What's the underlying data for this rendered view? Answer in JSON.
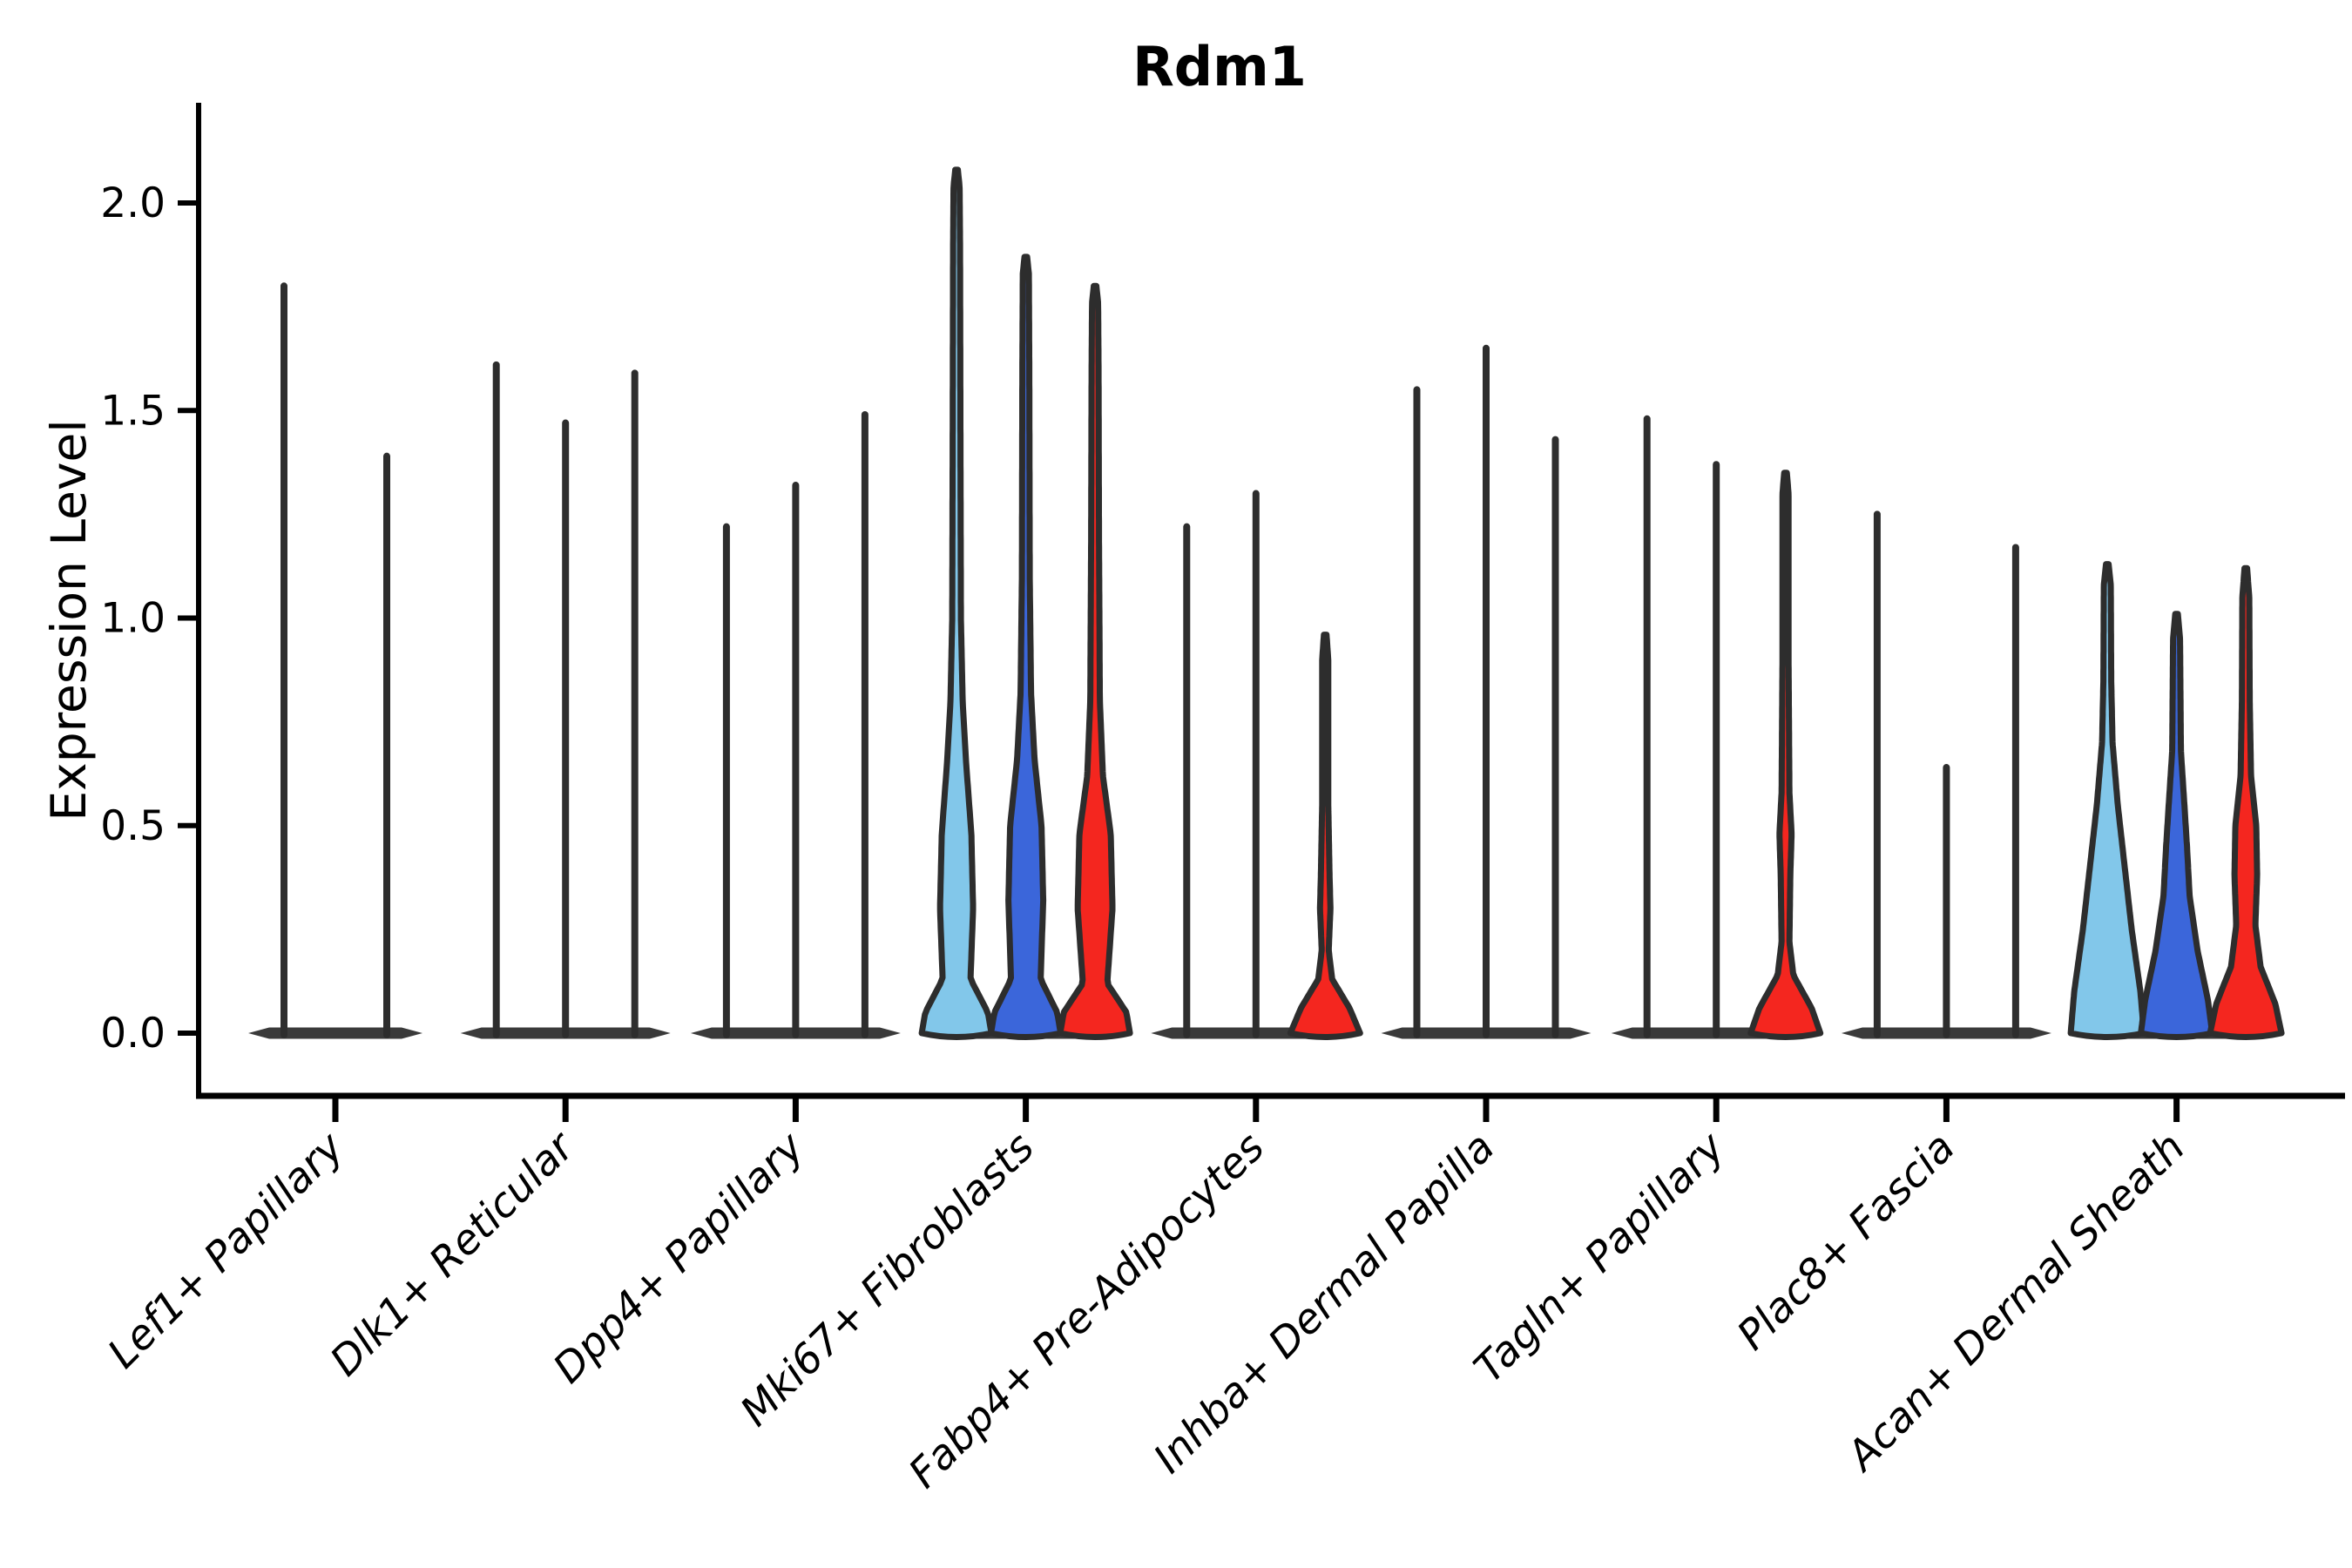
{
  "chart_data": {
    "type": "violin",
    "title": "Rdm1",
    "ylabel": "Expression Level",
    "xlabel": "",
    "ylim": [
      -0.15,
      2.24
    ],
    "yticks": [
      "0.0",
      "0.5",
      "1.0",
      "1.5",
      "2.0"
    ],
    "ytick_values": [
      0.0,
      0.5,
      1.0,
      1.5,
      2.0
    ],
    "grid": "off",
    "legend": "none",
    "colors": {
      "light_blue": "#82C7EA",
      "blue": "#3B66DA",
      "red": "#F4261F",
      "outline": "#2d2d2d",
      "axis": "#000000",
      "base_bar": "#3a3a3a"
    },
    "categories": [
      "Lef1+ Papillary",
      "Dlk1+ Reticular",
      "Dpp4+ Papillary",
      "Mki67+ Fibroblasts",
      "Fabp4+ Pre-Adipocytes",
      "Inhba+ Dermal Papilla",
      "Tagln+ Papillary",
      "Plac8+ Fascia",
      "Acan+ Dermal Sheath"
    ],
    "groups": [
      {
        "label": "Lef1+ Papillary",
        "violins": [
          {
            "hue": "light_blue",
            "max": 1.8,
            "shape": "spike"
          },
          {
            "hue": "red",
            "max": 1.39,
            "shape": "spike"
          }
        ]
      },
      {
        "label": "Dlk1+ Reticular",
        "violins": [
          {
            "hue": "light_blue",
            "max": 1.61,
            "shape": "spike"
          },
          {
            "hue": "blue",
            "max": 1.47,
            "shape": "spike"
          },
          {
            "hue": "red",
            "max": 1.59,
            "shape": "spike"
          }
        ]
      },
      {
        "label": "Dpp4+ Papillary",
        "violins": [
          {
            "hue": "light_blue",
            "max": 1.22,
            "shape": "spike"
          },
          {
            "hue": "blue",
            "max": 1.32,
            "shape": "spike"
          },
          {
            "hue": "red",
            "max": 1.49,
            "shape": "spike"
          }
        ]
      },
      {
        "label": "Mki67+ Fibroblasts",
        "violins": [
          {
            "hue": "light_blue",
            "max": 2.08,
            "shape": "wide",
            "profile": [
              [
                0,
                40
              ],
              [
                0.05,
                36
              ],
              [
                0.13,
                16
              ],
              [
                0.3,
                19
              ],
              [
                0.48,
                17
              ],
              [
                0.65,
                11
              ],
              [
                0.8,
                7
              ],
              [
                1.0,
                5
              ],
              [
                1.4,
                4.5
              ],
              [
                1.9,
                4
              ],
              [
                2.04,
                3.5
              ],
              [
                2.08,
                1.5
              ]
            ]
          },
          {
            "hue": "blue",
            "max": 1.87,
            "shape": "wide",
            "profile": [
              [
                0,
                40
              ],
              [
                0.05,
                36
              ],
              [
                0.13,
                17
              ],
              [
                0.32,
                20
              ],
              [
                0.5,
                18
              ],
              [
                0.66,
                10
              ],
              [
                0.82,
                6
              ],
              [
                1.1,
                4.5
              ],
              [
                1.6,
                4
              ],
              [
                1.83,
                3.5
              ],
              [
                1.87,
                1.5
              ]
            ]
          },
          {
            "hue": "red",
            "max": 1.8,
            "shape": "wide",
            "profile": [
              [
                0,
                40
              ],
              [
                0.05,
                36
              ],
              [
                0.12,
                14
              ],
              [
                0.3,
                20
              ],
              [
                0.48,
                18
              ],
              [
                0.62,
                9
              ],
              [
                0.8,
                5.5
              ],
              [
                1.2,
                4.5
              ],
              [
                1.6,
                4
              ],
              [
                1.76,
                3.5
              ],
              [
                1.8,
                1.5
              ]
            ]
          }
        ]
      },
      {
        "label": "Fabp4+ Pre-Adipocytes",
        "violins": [
          {
            "hue": "light_blue",
            "max": 1.22,
            "shape": "spike"
          },
          {
            "hue": "blue",
            "max": 1.3,
            "shape": "spike"
          },
          {
            "hue": "red",
            "max": 0.96,
            "shape": "wide",
            "profile": [
              [
                0,
                40
              ],
              [
                0.06,
                28
              ],
              [
                0.13,
                8
              ],
              [
                0.2,
                4
              ],
              [
                0.3,
                6
              ],
              [
                0.38,
                5
              ],
              [
                0.55,
                3.5
              ],
              [
                0.9,
                3.5
              ],
              [
                0.96,
                1.5
              ]
            ]
          }
        ]
      },
      {
        "label": "Inhba+ Dermal Papilla",
        "violins": [
          {
            "hue": "light_blue",
            "max": 1.55,
            "shape": "spike"
          },
          {
            "hue": "blue",
            "max": 1.65,
            "shape": "spike"
          },
          {
            "hue": "red",
            "max": 1.43,
            "shape": "spike"
          }
        ]
      },
      {
        "label": "Tagln+ Papillary",
        "violins": [
          {
            "hue": "light_blue",
            "max": 1.48,
            "shape": "spike"
          },
          {
            "hue": "blue",
            "max": 1.37,
            "shape": "spike"
          },
          {
            "hue": "red",
            "max": 1.35,
            "shape": "wide",
            "profile": [
              [
                0,
                40
              ],
              [
                0.06,
                30
              ],
              [
                0.14,
                9
              ],
              [
                0.22,
                4.5
              ],
              [
                0.38,
                5.5
              ],
              [
                0.48,
                7
              ],
              [
                0.58,
                4.5
              ],
              [
                0.9,
                3.5
              ],
              [
                1.3,
                3.5
              ],
              [
                1.35,
                1.5
              ]
            ]
          }
        ]
      },
      {
        "label": "Plac8+ Fascia",
        "violins": [
          {
            "hue": "light_blue",
            "max": 1.25,
            "shape": "spike"
          },
          {
            "hue": "blue",
            "max": 0.64,
            "shape": "spike"
          },
          {
            "hue": "red",
            "max": 1.17,
            "shape": "spike"
          }
        ]
      },
      {
        "label": "Acan+ Dermal Sheath",
        "violins": [
          {
            "hue": "light_blue",
            "max": 1.13,
            "shape": "wide",
            "profile": [
              [
                0,
                42
              ],
              [
                0.1,
                38
              ],
              [
                0.25,
                28
              ],
              [
                0.4,
                20
              ],
              [
                0.55,
                12
              ],
              [
                0.7,
                6
              ],
              [
                0.85,
                4.5
              ],
              [
                1.08,
                4
              ],
              [
                1.13,
                1.5
              ]
            ]
          },
          {
            "hue": "blue",
            "max": 1.01,
            "shape": "wide",
            "profile": [
              [
                0,
                41
              ],
              [
                0.08,
                36
              ],
              [
                0.2,
                24
              ],
              [
                0.33,
                15
              ],
              [
                0.45,
                12
              ],
              [
                0.55,
                9
              ],
              [
                0.68,
                5
              ],
              [
                0.95,
                4
              ],
              [
                1.01,
                1.5
              ]
            ]
          },
          {
            "hue": "red",
            "max": 1.12,
            "shape": "wide",
            "profile": [
              [
                0,
                41
              ],
              [
                0.07,
                34
              ],
              [
                0.16,
                17
              ],
              [
                0.26,
                11
              ],
              [
                0.38,
                13
              ],
              [
                0.5,
                12
              ],
              [
                0.62,
                6
              ],
              [
                0.8,
                4.5
              ],
              [
                1.05,
                4
              ],
              [
                1.12,
                1.5
              ]
            ]
          }
        ]
      }
    ]
  }
}
